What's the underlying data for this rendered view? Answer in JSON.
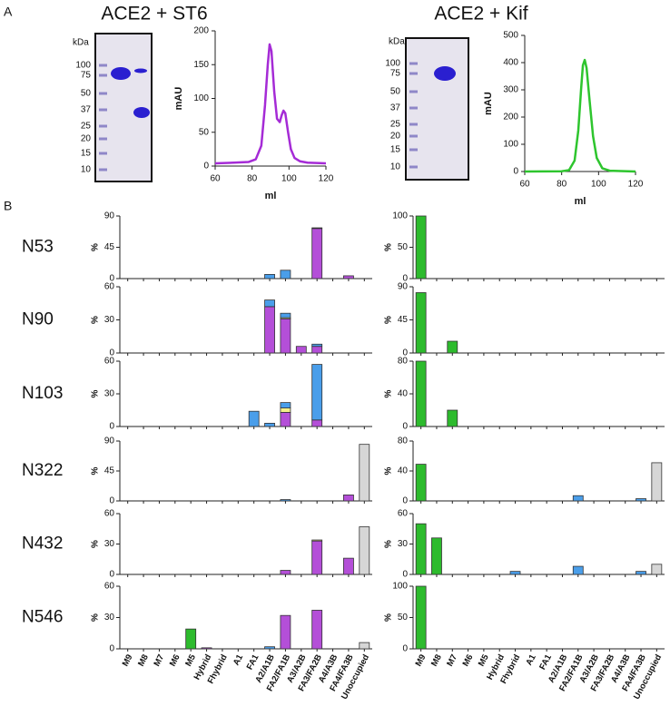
{
  "panel_labels": [
    "A",
    "B"
  ],
  "gels": [
    {
      "unit": "kDa",
      "markers": [
        100,
        75,
        50,
        37,
        25,
        20,
        15,
        10
      ]
    },
    {
      "unit": "kDa",
      "markers": [
        100,
        75,
        50,
        37,
        25,
        20,
        15,
        10
      ]
    }
  ],
  "chart_data": [
    {
      "type": "line",
      "title": "ACE2 + ST6",
      "xlabel": "ml",
      "ylabel": "mAU",
      "color": "#a52bd6",
      "x": [
        60,
        70,
        78,
        82,
        85,
        87,
        88.5,
        89.5,
        90.5,
        92,
        93.5,
        95,
        96,
        97,
        98,
        99.5,
        101,
        103,
        106,
        110,
        120
      ],
      "y": [
        4,
        5,
        6,
        10,
        30,
        90,
        150,
        180,
        170,
        110,
        70,
        65,
        75,
        82,
        78,
        50,
        25,
        12,
        7,
        5,
        4
      ],
      "xlim": [
        60,
        120
      ],
      "xticks": [
        60,
        80,
        100,
        120
      ],
      "ylim": [
        0,
        200
      ],
      "yticks": [
        0,
        50,
        100,
        150,
        200
      ]
    },
    {
      "type": "line",
      "title": "ACE2 + Kif",
      "xlabel": "ml",
      "ylabel": "mAU",
      "color": "#2ec52e",
      "x": [
        60,
        80,
        84,
        87,
        89,
        90.5,
        91.5,
        92.5,
        93.5,
        95,
        97,
        99,
        102,
        106,
        120
      ],
      "y": [
        0,
        1,
        5,
        40,
        150,
        300,
        390,
        410,
        380,
        270,
        130,
        50,
        12,
        3,
        0
      ],
      "xlim": [
        60,
        120
      ],
      "xticks": [
        60,
        80,
        100,
        120
      ],
      "ylim": [
        0,
        500
      ],
      "yticks": [
        0,
        100,
        200,
        300,
        400,
        500
      ]
    },
    {
      "type": "bar",
      "categories": [
        "M9",
        "M8",
        "M7",
        "M6",
        "M5",
        "Hybrid",
        "Fhybrid",
        "A1",
        "FA1",
        "A2/A1B",
        "FA2/FA1B",
        "A3/A2B",
        "FA3/FA2B",
        "A4/A3B",
        "FA4/FA3B",
        "Unoccupied"
      ],
      "panels": [
        {
          "label": "N53",
          "ylabel": "%",
          "ylim": [
            0,
            90
          ],
          "yticks": [
            0,
            45,
            90
          ],
          "series": [
            {
              "color": "#b44fd8",
              "values": [
                0,
                0,
                0,
                0,
                0,
                0,
                0,
                0,
                0,
                0,
                0,
                0,
                72,
                0,
                4,
                0
              ]
            },
            {
              "color": "#4a9eea",
              "values": [
                0,
                0,
                0,
                0,
                0,
                0,
                0,
                0,
                0,
                6,
                12,
                0,
                1,
                0,
                0,
                0
              ]
            }
          ]
        },
        {
          "label": "N90",
          "ylabel": "%",
          "ylim": [
            0,
            60
          ],
          "yticks": [
            0,
            30,
            60
          ],
          "series": [
            {
              "color": "#b44fd8",
              "values": [
                0,
                0,
                0,
                0,
                0,
                0,
                0,
                0,
                0,
                42,
                31,
                6,
                6,
                0,
                0,
                0
              ]
            },
            {
              "color": "#f4f08a",
              "values": [
                0,
                0,
                0,
                0,
                0,
                0,
                0,
                0,
                0,
                0,
                1,
                0,
                0,
                0,
                0,
                0
              ]
            },
            {
              "color": "#4a9eea",
              "values": [
                0,
                0,
                0,
                0,
                0,
                0,
                0,
                0,
                0,
                6,
                4,
                0,
                2,
                0,
                0,
                0
              ]
            }
          ]
        },
        {
          "label": "N103",
          "ylabel": "%",
          "ylim": [
            0,
            60
          ],
          "yticks": [
            0,
            30,
            60
          ],
          "series": [
            {
              "color": "#b44fd8",
              "values": [
                0,
                0,
                0,
                0,
                0,
                0,
                0,
                0,
                0,
                0,
                13,
                0,
                6,
                0,
                0,
                0
              ]
            },
            {
              "color": "#f4f08a",
              "values": [
                0,
                0,
                0,
                0,
                0,
                0,
                0,
                0,
                0,
                0,
                4,
                0,
                0,
                0,
                0,
                0
              ]
            },
            {
              "color": "#4a9eea",
              "values": [
                0,
                0,
                0,
                0,
                0,
                0,
                0,
                0,
                14,
                3,
                5,
                0,
                51,
                0,
                0,
                0
              ]
            }
          ]
        },
        {
          "label": "N322",
          "ylabel": "%",
          "ylim": [
            0,
            90
          ],
          "yticks": [
            0,
            45,
            90
          ],
          "series": [
            {
              "color": "#b44fd8",
              "values": [
                0,
                0,
                0,
                0,
                0,
                0,
                0,
                0,
                0,
                0,
                0,
                0,
                0,
                0,
                9,
                0
              ]
            },
            {
              "color": "#4a9eea",
              "values": [
                0,
                0,
                0,
                0,
                0,
                0,
                0,
                0,
                0,
                0,
                2,
                0,
                0,
                0,
                0,
                0
              ]
            },
            {
              "color": "#d6d6d6",
              "values": [
                0,
                0,
                0,
                0,
                0,
                0,
                0,
                0,
                0,
                0,
                0,
                0,
                0,
                0,
                0,
                85
              ]
            }
          ]
        },
        {
          "label": "N432",
          "ylabel": "%",
          "ylim": [
            0,
            60
          ],
          "yticks": [
            0,
            30,
            60
          ],
          "series": [
            {
              "color": "#b44fd8",
              "values": [
                0,
                0,
                0,
                0,
                0,
                0,
                0,
                0,
                0,
                0,
                4,
                0,
                33,
                0,
                16,
                0
              ]
            },
            {
              "color": "#f4f08a",
              "values": [
                0,
                0,
                0,
                0,
                0,
                0,
                0,
                0,
                0,
                0,
                0,
                0,
                1,
                0,
                0,
                0
              ]
            },
            {
              "color": "#d6d6d6",
              "values": [
                0,
                0,
                0,
                0,
                0,
                0,
                0,
                0,
                0,
                0,
                0,
                0,
                0,
                0,
                0,
                47
              ]
            }
          ]
        },
        {
          "label": "N546",
          "ylabel": "%",
          "ylim": [
            0,
            60
          ],
          "yticks": [
            0,
            30,
            60
          ],
          "series": [
            {
              "color": "#b44fd8",
              "values": [
                0,
                0,
                0,
                0,
                0,
                1,
                0,
                0,
                0,
                0,
                32,
                0,
                37,
                0,
                0,
                0
              ]
            },
            {
              "color": "#4a9eea",
              "values": [
                0,
                0,
                0,
                0,
                0,
                0,
                0,
                0,
                0,
                2,
                0,
                0,
                0,
                0,
                0,
                0
              ]
            },
            {
              "color": "#2dbb2d",
              "values": [
                0,
                0,
                0,
                0,
                19,
                0,
                0,
                0,
                0,
                0,
                0,
                0,
                0,
                0,
                0,
                0
              ]
            },
            {
              "color": "#d6d6d6",
              "values": [
                0,
                0,
                0,
                0,
                0,
                0,
                0,
                0,
                0,
                0,
                0,
                0,
                0,
                0,
                0,
                6
              ]
            }
          ]
        }
      ]
    },
    {
      "type": "bar",
      "categories": [
        "M9",
        "M8",
        "M7",
        "M6",
        "M5",
        "Hybrid",
        "Fhybrid",
        "A1",
        "FA1",
        "A2/A1B",
        "FA2/FA1B",
        "A3/A2B",
        "FA3/FA2B",
        "A4/A3B",
        "FA4/FA3B",
        "Unoccupied"
      ],
      "panels": [
        {
          "ylabel": "%",
          "ylim": [
            0,
            100
          ],
          "yticks": [
            0,
            50,
            100
          ],
          "series": [
            {
              "color": "#2dbb2d",
              "values": [
                100,
                0,
                0,
                0,
                0,
                0,
                0,
                0,
                0,
                0,
                0,
                0,
                0,
                0,
                0,
                0
              ]
            }
          ]
        },
        {
          "ylabel": "%",
          "ylim": [
            0,
            90
          ],
          "yticks": [
            0,
            45,
            90
          ],
          "series": [
            {
              "color": "#2dbb2d",
              "values": [
                82,
                0,
                16,
                0,
                0,
                0,
                0,
                0,
                0,
                0,
                0,
                0,
                0,
                0,
                0,
                0
              ]
            }
          ]
        },
        {
          "ylabel": "%",
          "ylim": [
            0,
            80
          ],
          "yticks": [
            0,
            40,
            80
          ],
          "series": [
            {
              "color": "#2dbb2d",
              "values": [
                80,
                0,
                20,
                0,
                0,
                0,
                0,
                0,
                0,
                0,
                0,
                0,
                0,
                0,
                0,
                0
              ]
            }
          ]
        },
        {
          "ylabel": "%",
          "ylim": [
            0,
            80
          ],
          "yticks": [
            0,
            40,
            80
          ],
          "series": [
            {
              "color": "#2dbb2d",
              "values": [
                49,
                0,
                0,
                0,
                0,
                0,
                0,
                0,
                0,
                0,
                0,
                0,
                0,
                0,
                0,
                0
              ]
            },
            {
              "color": "#4a9eea",
              "values": [
                0,
                0,
                0,
                0,
                0,
                0,
                0,
                0,
                0,
                0,
                7,
                0,
                0,
                0,
                3,
                0
              ]
            },
            {
              "color": "#d6d6d6",
              "values": [
                0,
                0,
                0,
                0,
                0,
                0,
                0,
                0,
                0,
                0,
                0,
                0,
                0,
                0,
                0,
                51
              ]
            }
          ]
        },
        {
          "ylabel": "%",
          "ylim": [
            0,
            60
          ],
          "yticks": [
            0,
            30,
            60
          ],
          "series": [
            {
              "color": "#2dbb2d",
              "values": [
                50,
                36,
                0,
                0,
                0,
                0,
                0,
                0,
                0,
                0,
                0,
                0,
                0,
                0,
                0,
                0
              ]
            },
            {
              "color": "#4a9eea",
              "values": [
                0,
                0,
                0,
                0,
                0,
                0,
                3,
                0,
                0,
                0,
                8,
                0,
                0,
                0,
                3,
                0
              ]
            },
            {
              "color": "#d6d6d6",
              "values": [
                0,
                0,
                0,
                0,
                0,
                0,
                0,
                0,
                0,
                0,
                0,
                0,
                0,
                0,
                0,
                10
              ]
            }
          ]
        },
        {
          "ylabel": "%",
          "ylim": [
            0,
            100
          ],
          "yticks": [
            0,
            50,
            100
          ],
          "series": [
            {
              "color": "#2dbb2d",
              "values": [
                100,
                0,
                0,
                0,
                0,
                0,
                0,
                0,
                0,
                0,
                0,
                0,
                0,
                0,
                0,
                0
              ]
            }
          ]
        }
      ]
    }
  ]
}
